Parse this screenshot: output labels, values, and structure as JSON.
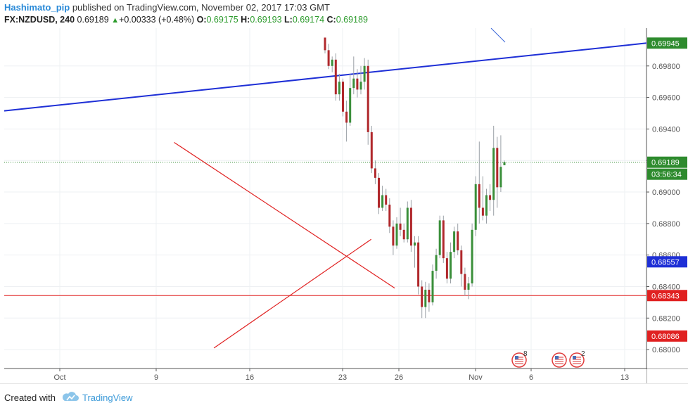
{
  "header": {
    "author": "Hashimato_pip",
    "published_text": "published on TradingView.com, November 02, 2017 17:03 GMT",
    "symbol": "FX:NZDUSD, 240",
    "last": "0.69189",
    "change": "+0.00333 (+0.48%)",
    "open_label": "O:",
    "open": "0.69175",
    "high_label": "H:",
    "high": "0.69193",
    "low_label": "L:",
    "low": "0.69174",
    "close_label": "C:",
    "close": "0.69189"
  },
  "chart_data": {
    "type": "candlestick",
    "ylim": [
      0.6788,
      0.7004
    ],
    "y_ticks": [
      "0.68000",
      "0.68200",
      "0.68400",
      "0.68600",
      "0.68800",
      "0.69000",
      "0.69200",
      "0.69400",
      "0.69600",
      "0.69800"
    ],
    "x_ticks": [
      "Oct",
      "9",
      "16",
      "23",
      "26",
      "Nov",
      "6",
      "13"
    ],
    "price_labels": [
      {
        "text": "0.69945",
        "value": 0.69945,
        "color": "#2e8b2e"
      },
      {
        "text": "0.69189",
        "value": 0.69189,
        "color": "#2e8b2e"
      },
      {
        "text": "03:56:34",
        "value": 0.69065,
        "color": "#2e8b2e"
      },
      {
        "text": "0.68557",
        "value": 0.68557,
        "color": "#1e2fd6"
      },
      {
        "text": "0.68343",
        "value": 0.68343,
        "color": "#e02121"
      },
      {
        "text": "0.68086",
        "value": 0.68086,
        "color": "#e02121"
      }
    ],
    "horizontal_line": {
      "value": 0.68343,
      "color": "#e02121"
    },
    "current_price_line": {
      "value": 0.69189,
      "color": "#2e8b2e"
    },
    "trendlines": [
      {
        "name": "blue-resistance",
        "color": "#1e2fd6",
        "from": [
          0,
          0.69515
        ],
        "to": [
          1,
          0.69945
        ]
      },
      {
        "name": "red-descending",
        "color": "#e02121",
        "from": [
          0.2645,
          0.69315
        ],
        "to": [
          0.6081,
          0.6839
        ]
      },
      {
        "name": "red-ascending",
        "color": "#e02121",
        "from": [
          0.3265,
          0.6801
        ],
        "to": [
          0.5714,
          0.687
        ]
      }
    ],
    "event_badges": [
      {
        "count": "8"
      },
      {
        "count": ""
      },
      {
        "count": "2"
      }
    ],
    "candles": [
      [
        0.6998,
        0.6998,
        0.6988,
        0.699
      ],
      [
        0.699,
        0.6994,
        0.6978,
        0.698
      ],
      [
        0.698,
        0.6986,
        0.6976,
        0.6984
      ],
      [
        0.6984,
        0.6988,
        0.6958,
        0.6962
      ],
      [
        0.6962,
        0.6975,
        0.6958,
        0.697
      ],
      [
        0.697,
        0.6972,
        0.6948,
        0.6951
      ],
      [
        0.6951,
        0.6958,
        0.6932,
        0.6944
      ],
      [
        0.6944,
        0.6975,
        0.6942,
        0.6966
      ],
      [
        0.6966,
        0.6986,
        0.6962,
        0.6972
      ],
      [
        0.6972,
        0.6978,
        0.696,
        0.6965
      ],
      [
        0.6965,
        0.698,
        0.6962,
        0.697
      ],
      [
        0.697,
        0.6985,
        0.6965,
        0.698
      ],
      [
        0.698,
        0.6984,
        0.693,
        0.6938
      ],
      [
        0.6938,
        0.6942,
        0.6912,
        0.6915
      ],
      [
        0.6915,
        0.692,
        0.6905,
        0.6909
      ],
      [
        0.6909,
        0.6912,
        0.6886,
        0.689
      ],
      [
        0.689,
        0.6904,
        0.6888,
        0.6898
      ],
      [
        0.6898,
        0.6902,
        0.6888,
        0.6892
      ],
      [
        0.6892,
        0.6896,
        0.6874,
        0.6878
      ],
      [
        0.6878,
        0.6882,
        0.686,
        0.6866
      ],
      [
        0.6866,
        0.6884,
        0.6864,
        0.688
      ],
      [
        0.688,
        0.689,
        0.6872,
        0.6876
      ],
      [
        0.6876,
        0.688,
        0.6868,
        0.687
      ],
      [
        0.687,
        0.6894,
        0.6868,
        0.689
      ],
      [
        0.689,
        0.6895,
        0.6862,
        0.6866
      ],
      [
        0.6866,
        0.6872,
        0.6852,
        0.6868
      ],
      [
        0.6868,
        0.6872,
        0.6835,
        0.684
      ],
      [
        0.684,
        0.6844,
        0.682,
        0.6827
      ],
      [
        0.6827,
        0.6843,
        0.682,
        0.6838
      ],
      [
        0.6838,
        0.6842,
        0.6824,
        0.683
      ],
      [
        0.683,
        0.6854,
        0.6828,
        0.685
      ],
      [
        0.685,
        0.6864,
        0.6845,
        0.686
      ],
      [
        0.686,
        0.6885,
        0.6858,
        0.6882
      ],
      [
        0.6882,
        0.6885,
        0.6855,
        0.6858
      ],
      [
        0.6858,
        0.6862,
        0.6842,
        0.6845
      ],
      [
        0.6845,
        0.6868,
        0.6842,
        0.6862
      ],
      [
        0.6862,
        0.6878,
        0.6858,
        0.6875
      ],
      [
        0.6875,
        0.688,
        0.686,
        0.6863
      ],
      [
        0.6863,
        0.6866,
        0.684,
        0.6848
      ],
      [
        0.6848,
        0.6852,
        0.6834,
        0.6838
      ],
      [
        0.6838,
        0.6846,
        0.6832,
        0.6842
      ],
      [
        0.6842,
        0.688,
        0.684,
        0.6876
      ],
      [
        0.6876,
        0.691,
        0.6872,
        0.6905
      ],
      [
        0.6905,
        0.6932,
        0.688,
        0.689
      ],
      [
        0.689,
        0.691,
        0.6882,
        0.6885
      ],
      [
        0.6885,
        0.6902,
        0.688,
        0.6898
      ],
      [
        0.6898,
        0.6905,
        0.6888,
        0.6895
      ],
      [
        0.6895,
        0.6942,
        0.6885,
        0.6928
      ],
      [
        0.6928,
        0.6935,
        0.689,
        0.6903
      ],
      [
        0.6903,
        0.6936,
        0.69,
        0.6916
      ],
      [
        0.6917,
        0.692,
        0.6917,
        0.6919
      ]
    ]
  },
  "footer": {
    "created_with": "Created with",
    "brand": "TradingView"
  }
}
